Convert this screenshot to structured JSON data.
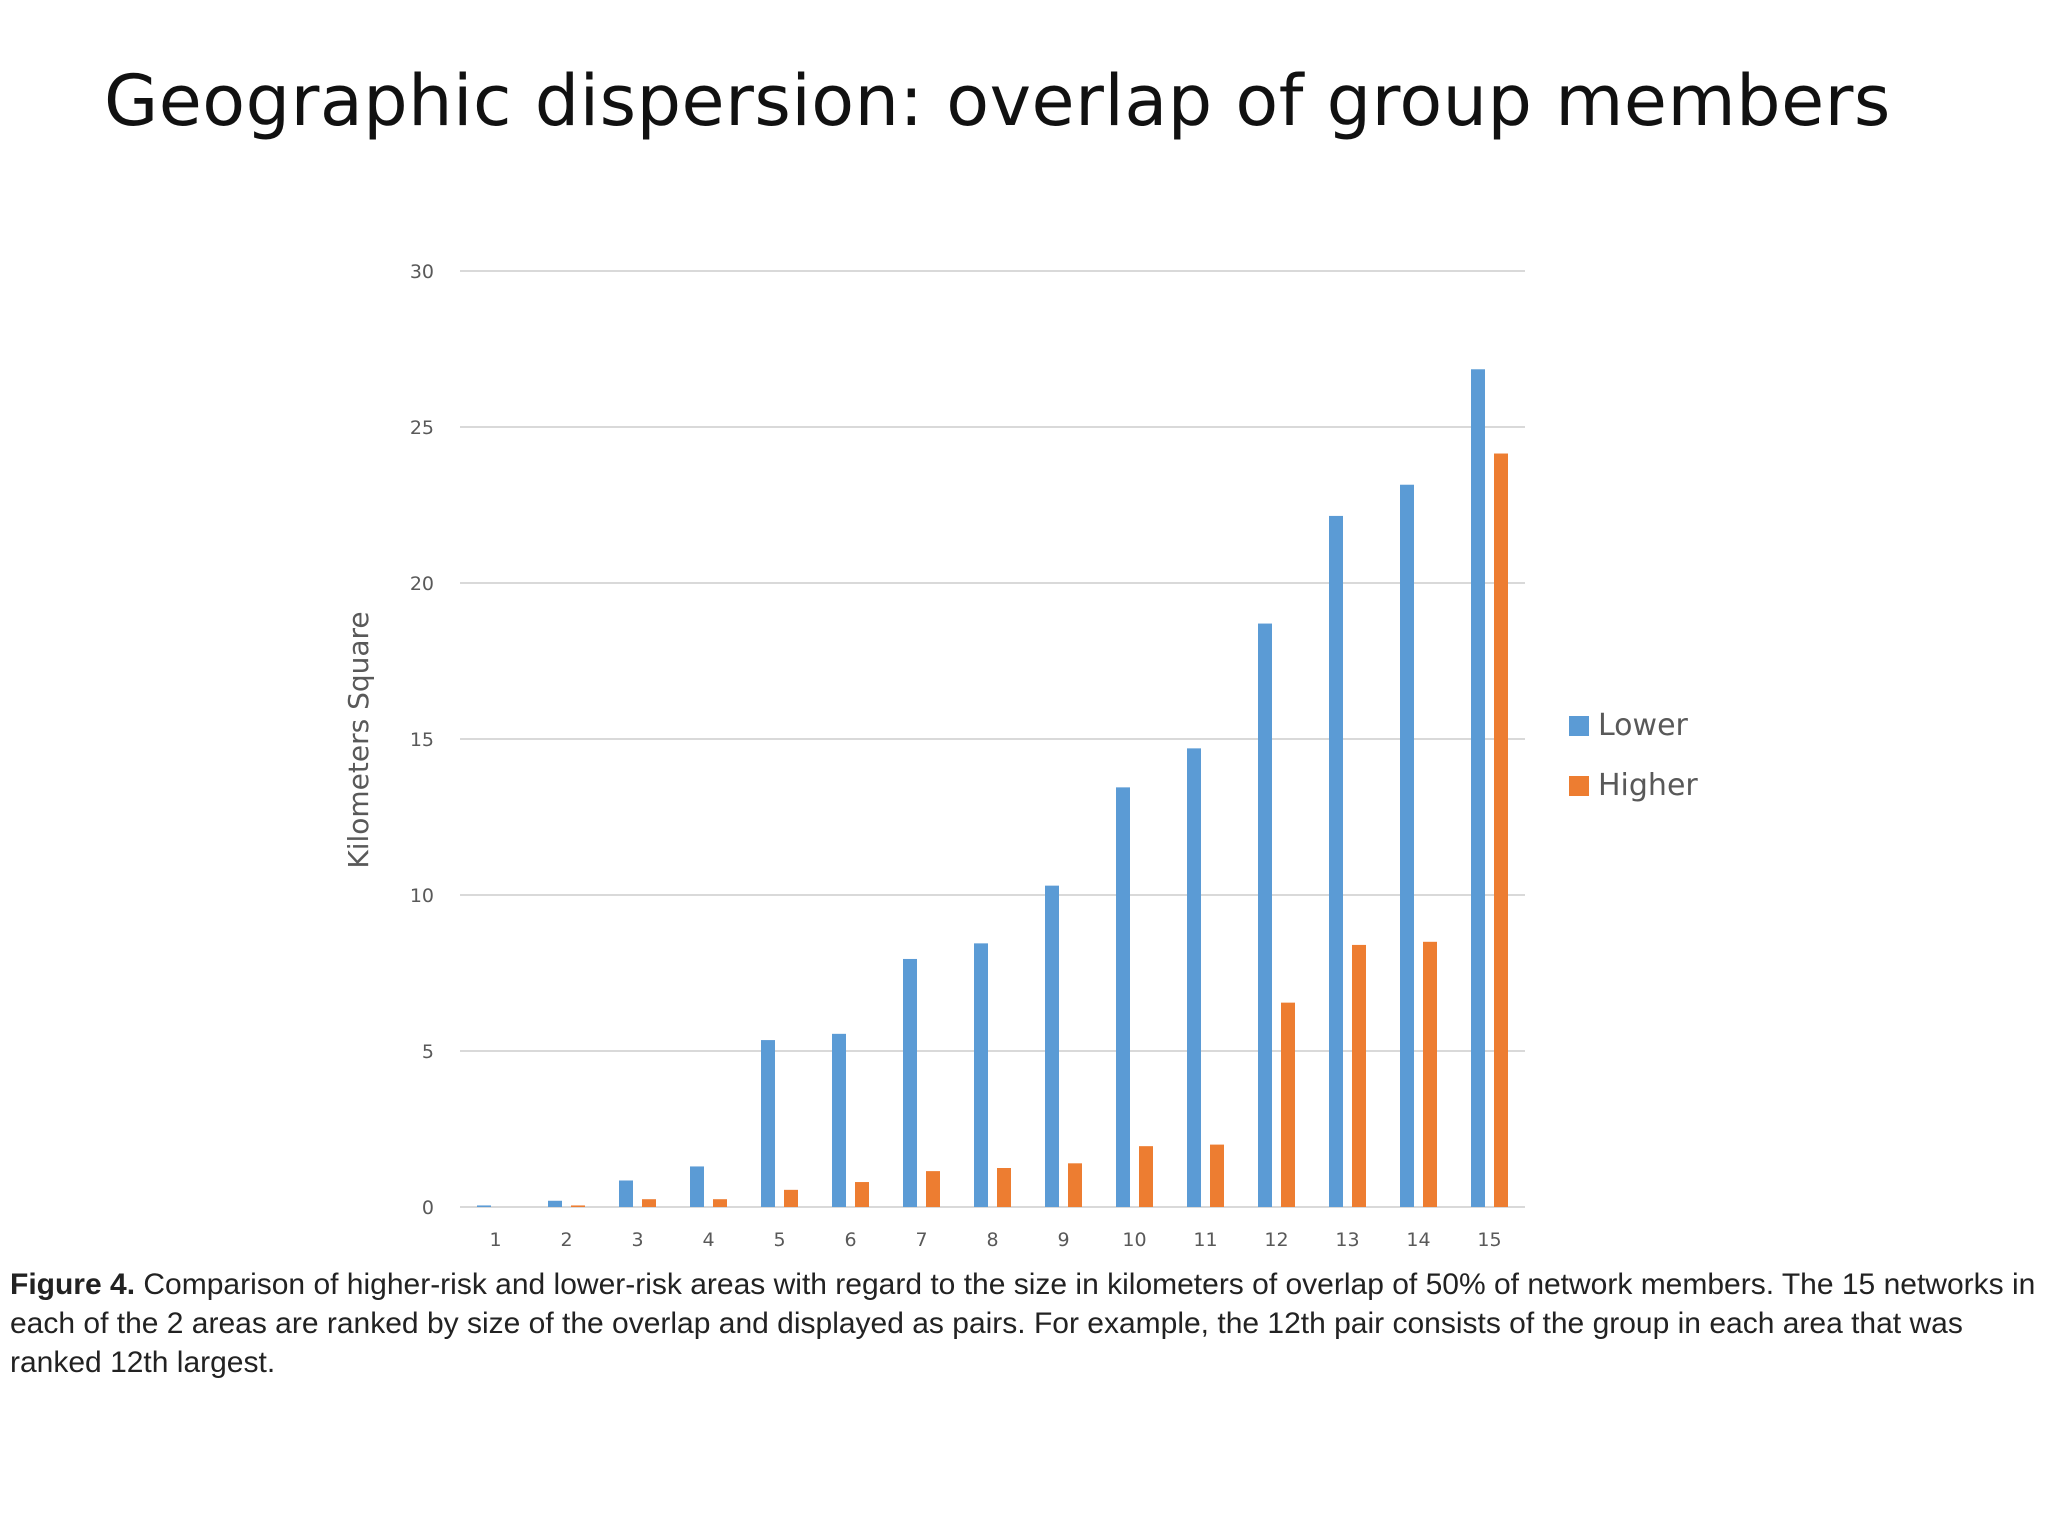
{
  "slide": {
    "title": "Geographic dispersion: overlap of group members"
  },
  "caption": {
    "label": "Figure 4.",
    "text": "Comparison of higher-risk and lower-risk areas with regard to the size in kilometers of overlap of 50% of network members. The 15 networks in each of the 2 areas are ranked by size of the overlap and displayed as pairs. For example, the 12th pair consists of the group in each area that was ranked 12th largest."
  },
  "colors": {
    "lower": "#5b9bd5",
    "higher": "#ed7d31",
    "grid": "#d9d9d9",
    "tick_text": "#595959"
  },
  "chart_data": {
    "type": "bar",
    "title": "",
    "xlabel": "",
    "ylabel": "Kilometers Square",
    "ylim": [
      0,
      30
    ],
    "yticks": [
      0,
      5,
      10,
      15,
      20,
      25,
      30
    ],
    "grid": true,
    "legend_position": "right",
    "categories": [
      "1",
      "2",
      "3",
      "4",
      "5",
      "6",
      "7",
      "8",
      "9",
      "10",
      "11",
      "12",
      "13",
      "14",
      "15"
    ],
    "series": [
      {
        "name": "Lower",
        "values": [
          0.05,
          0.2,
          0.85,
          1.3,
          5.35,
          5.55,
          7.95,
          8.45,
          10.3,
          13.45,
          14.7,
          18.7,
          22.15,
          23.15,
          26.85
        ]
      },
      {
        "name": "Higher",
        "values": [
          0.0,
          0.05,
          0.25,
          0.25,
          0.55,
          0.8,
          1.15,
          1.25,
          1.4,
          1.95,
          2.0,
          6.55,
          8.4,
          8.5,
          24.15
        ]
      }
    ]
  }
}
